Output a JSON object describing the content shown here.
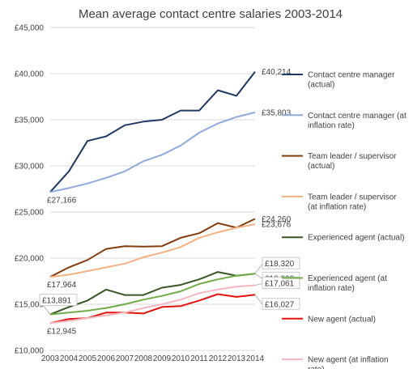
{
  "chart_data": {
    "type": "line",
    "title": "Mean average contact centre salaries 2003-2014",
    "xlabel": "",
    "ylabel": "",
    "ylim": [
      10000,
      45000
    ],
    "y_ticks": [
      "£10,000",
      "£15,000",
      "£20,000",
      "£25,000",
      "£30,000",
      "£35,000",
      "£40,000",
      "£45,000"
    ],
    "y_tick_values": [
      10000,
      15000,
      20000,
      25000,
      30000,
      35000,
      40000,
      45000
    ],
    "x": [
      "2003",
      "2004",
      "2005",
      "2006",
      "2007",
      "2008",
      "2009",
      "2010",
      "2011",
      "2012",
      "2013",
      "2014"
    ],
    "grid": true,
    "legend_position": "right",
    "series": [
      {
        "name": "Contact centre manager (actual)",
        "color": "#1f3864",
        "values": [
          27166,
          29400,
          32700,
          33200,
          34400,
          34800,
          35000,
          36000,
          36000,
          38200,
          37600,
          40214
        ]
      },
      {
        "name": "Contact centre manager (at inflation rate)",
        "color": "#8eaadb",
        "values": [
          27166,
          27600,
          28100,
          28700,
          29400,
          30500,
          31200,
          32200,
          33600,
          34600,
          35300,
          35803
        ]
      },
      {
        "name": "Team leader / supervisor (actual)",
        "color": "#843c0c",
        "values": [
          17964,
          19000,
          19800,
          21000,
          21300,
          21250,
          21300,
          22200,
          22700,
          23800,
          23300,
          24260
        ]
      },
      {
        "name": "Team leader / supervisor (at inflation rate)",
        "color": "#f4b183",
        "values": [
          17964,
          18200,
          18600,
          19000,
          19400,
          20100,
          20600,
          21200,
          22200,
          22800,
          23300,
          23676
        ]
      },
      {
        "name": "Experienced agent (actual)",
        "color": "#375623",
        "values": [
          13891,
          14700,
          15400,
          16600,
          16000,
          16000,
          16800,
          17100,
          17700,
          18500,
          18100,
          18308
        ]
      },
      {
        "name": "Experienced agent (at inflation rate)",
        "color": "#70ad47",
        "values": [
          13891,
          14100,
          14300,
          14600,
          15000,
          15500,
          15900,
          16400,
          17200,
          17700,
          18100,
          18320
        ]
      },
      {
        "name": "New agent (actual)",
        "color": "#e3120b",
        "values": [
          12945,
          13400,
          13500,
          14100,
          14100,
          14000,
          14700,
          14800,
          15400,
          16100,
          15800,
          16027
        ]
      },
      {
        "name": "New agent (at inflation rate)",
        "color": "#f4b6bf",
        "values": [
          12945,
          13200,
          13500,
          13800,
          14100,
          14600,
          15000,
          15500,
          16200,
          16600,
          16900,
          17061
        ]
      }
    ],
    "data_labels": [
      {
        "series": 0,
        "point": 11,
        "text": "£40,214",
        "pos": "right"
      },
      {
        "series": 1,
        "point": 11,
        "text": "£35,803",
        "pos": "right"
      },
      {
        "series": 0,
        "point": 0,
        "text": "£27,166",
        "pos": "below-left"
      },
      {
        "series": 2,
        "point": 11,
        "text": "£24,260",
        "pos": "right"
      },
      {
        "series": 3,
        "point": 11,
        "text": "£23,676",
        "pos": "right"
      },
      {
        "series": 2,
        "point": 0,
        "text": "£17,964",
        "pos": "below-left"
      },
      {
        "series": 5,
        "point": 11,
        "text": "£18,320",
        "pos": "right-box-up"
      },
      {
        "series": 4,
        "point": 11,
        "text": "£18,308",
        "pos": "right-box-down"
      },
      {
        "series": 4,
        "point": 0,
        "text": "£13,891",
        "pos": "above-box"
      },
      {
        "series": 6,
        "point": 0,
        "text": "£12,945",
        "pos": "below-left"
      },
      {
        "series": 7,
        "point": 11,
        "text": "£17,061",
        "pos": "right-box-up2"
      },
      {
        "series": 6,
        "point": 11,
        "text": "£16,027",
        "pos": "right-box-down2"
      }
    ]
  }
}
